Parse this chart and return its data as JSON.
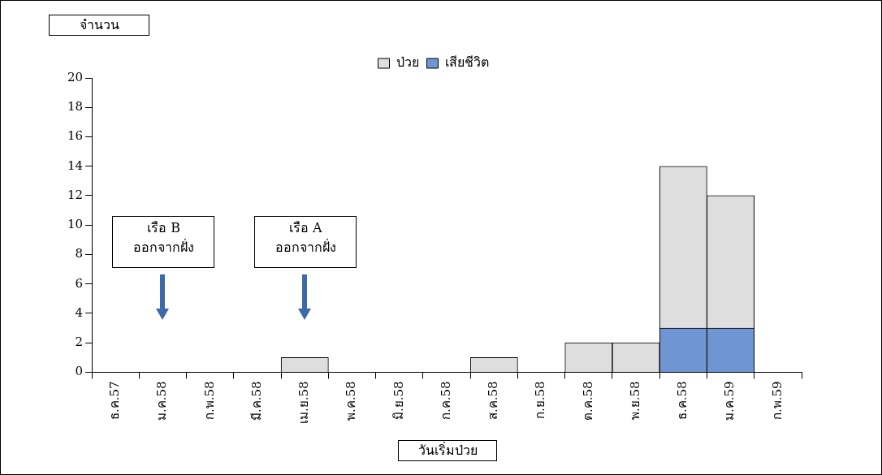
{
  "chart_data": {
    "type": "bar",
    "stacked": true,
    "xlabel": "วันเริ่มป่วย",
    "ylabel": "จำนวน",
    "categories": [
      "ธ.ค.57",
      "ม.ค.58",
      "ก.พ.58",
      "มี.ค.58",
      "เม.ย.58",
      "พ.ค.58",
      "มิ.ย.58",
      "ก.ค.58",
      "ส.ค.58",
      "ก.ย.58",
      "ต.ค.58",
      "พ.ย.58",
      "ธ.ค.58",
      "ม.ค.59",
      "ก.พ.59"
    ],
    "series": [
      {
        "name": "เสียชีวิต",
        "color": "#6f95d2",
        "values": [
          0,
          0,
          0,
          0,
          0,
          0,
          0,
          0,
          0,
          0,
          0,
          0,
          3,
          3,
          0
        ]
      },
      {
        "name": "ป่วย",
        "color": "#dedede",
        "values": [
          0,
          0,
          0,
          0,
          1,
          0,
          0,
          0,
          1,
          0,
          2,
          2,
          11,
          9,
          0
        ]
      }
    ],
    "ylim": [
      0,
      20
    ],
    "yticks": [
      0,
      2,
      4,
      6,
      8,
      10,
      12,
      14,
      16,
      18,
      20
    ],
    "grid": false,
    "legend": "top",
    "annotations": [
      "เรือ B\nออกจากฝั่ง",
      "เรือ A\nออกจากฝั่ง"
    ]
  }
}
